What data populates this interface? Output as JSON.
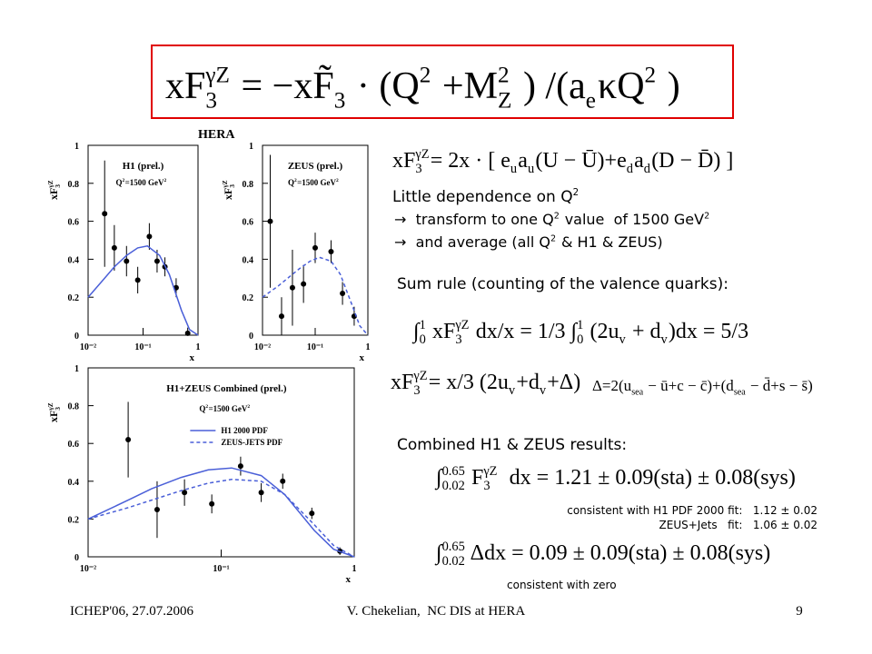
{
  "slide": {
    "heading": "HERA",
    "header_formula": [
      "xF",
      {
        "sub": "3",
        "sup": "γZ"
      },
      " = −x",
      "F̃",
      {
        "sub": "3"
      },
      " · (Q",
      {
        "sup": "2"
      },
      " +M",
      {
        "sub": "Z",
        "sup": "2"
      },
      " ) /(a",
      {
        "sub": "e"
      },
      "κQ",
      {
        "sup": "2"
      },
      " )"
    ],
    "formula_structure": [
      "xF",
      {
        "sub": "3",
        "sup": "γZ"
      },
      "= 2x · [ e",
      {
        "sub": "u"
      },
      "a",
      {
        "sub": "u"
      },
      "(U − Ū)+e",
      {
        "sub": "d"
      },
      "a",
      {
        "sub": "d"
      },
      "(D − D̄) ]"
    ],
    "dependence": [
      "Little dependence on Q",
      {
        "sup": "2"
      }
    ],
    "transform": [
      "→  transform to one Q",
      {
        "sup": "2"
      },
      " value  of 1500 GeV",
      {
        "sup": "2"
      }
    ],
    "average": [
      "→  and average (all Q",
      {
        "sup": "2"
      },
      " & H1 & ZEUS)"
    ],
    "sum_rule": "Sum rule (counting of the valence quarks):",
    "formula_sum_rule": [
      "∫",
      {
        "sub": "0",
        "sup": "1"
      },
      " xF",
      {
        "sub": "3",
        "sup": "γZ"
      },
      " dx/x = 1/3 ∫",
      {
        "sub": "0",
        "sup": "1"
      },
      " (2u",
      {
        "sub": "v"
      },
      " + d",
      {
        "sub": "v"
      },
      ")dx = 5/3"
    ],
    "formula_valence": [
      "xF",
      {
        "sub": "3",
        "sup": "γZ"
      },
      "= x/3 (2u",
      {
        "sub": "v"
      },
      "+d",
      {
        "sub": "v"
      },
      "+Δ)"
    ],
    "formula_delta": [
      "Δ=2(u",
      {
        "sub": "sea"
      },
      " − ū+c − c̄)+(d",
      {
        "sub": "sea"
      },
      " − d̄+s − s̄)"
    ],
    "combined": "Combined H1 & ZEUS results:",
    "formula_result": [
      "∫",
      {
        "sub": "0.02",
        "sup": "0.65"
      },
      " F",
      {
        "sub": "3",
        "sup": "γZ"
      },
      "  dx = 1.21 ± 0.09(sta) ± 0.08(sys)"
    ],
    "note_h1": "consistent with H1 PDF 2000 fit:   1.12 ± 0.02",
    "note_zeus": "ZEUS+Jets   fit:   1.06 ± 0.02",
    "formula_delta_result": [
      "∫",
      {
        "sub": "0.02",
        "sup": "0.65"
      },
      " Δdx = 0.09 ± 0.09(sta) ± 0.08(sys)"
    ],
    "note_zero": "consistent with zero",
    "footer_left": "ICHEP'06, 27.07.2006",
    "footer_center": "V. Chekelian,  NC DIS at HERA",
    "footer_right": "9"
  },
  "chart_data": [
    {
      "type": "scatter",
      "title": "H1 (prel.)",
      "annotation": [
        "Q",
        {
          "sup": "2"
        },
        "=1500 GeV",
        {
          "sup": "2"
        }
      ],
      "x_label": "x",
      "y_label": [
        "xF",
        {
          "sub": "3",
          "sup": "γZ"
        }
      ],
      "log_x": true,
      "xlim": [
        0.01,
        1
      ],
      "ylim": [
        0,
        1
      ],
      "xticks": [
        {
          "value": 0.01,
          "label": "10⁻²"
        },
        {
          "value": 0.1,
          "label": "10⁻¹"
        },
        1
      ],
      "yticks": [
        0,
        0.2,
        0.4,
        0.6,
        0.8,
        1
      ],
      "series": [
        {
          "type": "points",
          "color": "#000000",
          "x": [
            0.02,
            0.03,
            0.05,
            0.08,
            0.13,
            0.18,
            0.25,
            0.4,
            0.65
          ],
          "values": [
            0.64,
            0.46,
            0.39,
            0.29,
            0.52,
            0.39,
            0.36,
            0.25,
            0.01
          ],
          "errors": [
            0.28,
            0.12,
            0.08,
            0.07,
            0.07,
            0.06,
            0.05,
            0.05,
            0.03
          ]
        },
        {
          "type": "line",
          "line_style": "solid",
          "color": "#4a5fd8",
          "x": [
            0.01,
            0.02,
            0.03,
            0.05,
            0.08,
            0.12,
            0.2,
            0.3,
            0.5,
            0.7,
            1
          ],
          "values": [
            0.2,
            0.3,
            0.36,
            0.42,
            0.46,
            0.47,
            0.42,
            0.32,
            0.13,
            0.03,
            0
          ]
        }
      ]
    },
    {
      "type": "scatter",
      "title": "ZEUS (prel.)",
      "annotation": [
        "Q",
        {
          "sup": "2"
        },
        "=1500 GeV",
        {
          "sup": "2"
        }
      ],
      "x_label": "x",
      "y_label": [
        "xF",
        {
          "sub": "3",
          "sup": "γZ"
        }
      ],
      "log_x": true,
      "xlim": [
        0.01,
        1
      ],
      "ylim": [
        0,
        1
      ],
      "xticks": [
        {
          "value": 0.01,
          "label": "10⁻²"
        },
        {
          "value": 0.1,
          "label": "10⁻¹"
        },
        1
      ],
      "yticks": [
        0,
        0.2,
        0.4,
        0.6,
        0.8,
        1
      ],
      "series": [
        {
          "type": "points",
          "color": "#000000",
          "x": [
            0.014,
            0.023,
            0.037,
            0.06,
            0.1,
            0.2,
            0.33,
            0.55
          ],
          "values": [
            0.6,
            0.1,
            0.25,
            0.27,
            0.46,
            0.44,
            0.22,
            0.1
          ],
          "errors": [
            0.35,
            0.1,
            0.2,
            0.1,
            0.08,
            0.06,
            0.06,
            0.05
          ]
        },
        {
          "type": "line",
          "line_style": "dashed",
          "color": "#4a5fd8",
          "x": [
            0.01,
            0.02,
            0.03,
            0.05,
            0.08,
            0.12,
            0.2,
            0.3,
            0.5,
            0.7,
            1
          ],
          "values": [
            0.2,
            0.26,
            0.3,
            0.35,
            0.39,
            0.41,
            0.39,
            0.32,
            0.16,
            0.05,
            0
          ]
        }
      ]
    },
    {
      "type": "scatter",
      "title": "H1+ZEUS Combined (prel.)",
      "annotation": [
        "Q",
        {
          "sup": "2"
        },
        "=1500 GeV",
        {
          "sup": "2"
        }
      ],
      "x_label": "x",
      "y_label": [
        "xF",
        {
          "sub": "3",
          "sup": "γZ"
        }
      ],
      "log_x": true,
      "xlim": [
        0.01,
        1
      ],
      "ylim": [
        0,
        1
      ],
      "xticks": [
        {
          "value": 0.01,
          "label": "10⁻²"
        },
        {
          "value": 0.1,
          "label": "10⁻¹"
        },
        1
      ],
      "yticks": [
        0,
        0.2,
        0.4,
        0.6,
        0.8,
        1
      ],
      "series": [
        {
          "type": "points",
          "color": "#000000",
          "x": [
            0.02,
            0.033,
            0.053,
            0.085,
            0.14,
            0.2,
            0.29,
            0.48,
            0.78
          ],
          "values": [
            0.62,
            0.25,
            0.34,
            0.28,
            0.48,
            0.34,
            0.4,
            0.23,
            0.03
          ],
          "errors": [
            0.2,
            0.15,
            0.07,
            0.05,
            0.05,
            0.05,
            0.04,
            0.03,
            0.02
          ]
        },
        {
          "type": "line",
          "name": "H1 2000 PDF",
          "line_style": "solid",
          "color": "#4a5fd8",
          "x": [
            0.01,
            0.02,
            0.03,
            0.05,
            0.08,
            0.12,
            0.2,
            0.3,
            0.5,
            0.7,
            1
          ],
          "values": [
            0.2,
            0.3,
            0.36,
            0.42,
            0.46,
            0.47,
            0.43,
            0.33,
            0.14,
            0.04,
            0
          ]
        },
        {
          "type": "line",
          "name": "ZEUS-JETS PDF",
          "line_style": "dashed",
          "color": "#4a5fd8",
          "x": [
            0.01,
            0.02,
            0.03,
            0.05,
            0.08,
            0.12,
            0.2,
            0.3,
            0.5,
            0.7,
            1
          ],
          "values": [
            0.2,
            0.26,
            0.3,
            0.35,
            0.39,
            0.41,
            0.4,
            0.33,
            0.17,
            0.06,
            0
          ]
        }
      ]
    }
  ]
}
